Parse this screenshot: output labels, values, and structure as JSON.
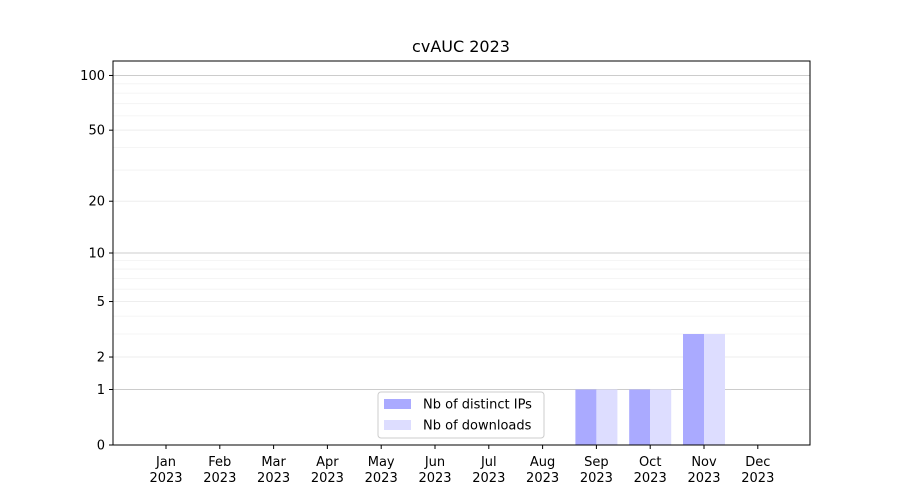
{
  "chart_data": {
    "type": "bar",
    "title": "cvAUC 2023",
    "xlabel": "",
    "ylabel": "",
    "scale": "symlog",
    "categories": [
      [
        "Jan",
        "2023"
      ],
      [
        "Feb",
        "2023"
      ],
      [
        "Mar",
        "2023"
      ],
      [
        "Apr",
        "2023"
      ],
      [
        "May",
        "2023"
      ],
      [
        "Jun",
        "2023"
      ],
      [
        "Jul",
        "2023"
      ],
      [
        "Aug",
        "2023"
      ],
      [
        "Sep",
        "2023"
      ],
      [
        "Oct",
        "2023"
      ],
      [
        "Nov",
        "2023"
      ],
      [
        "Dec",
        "2023"
      ]
    ],
    "series": [
      {
        "name": "Nb of distinct IPs",
        "color": "#aaaaff",
        "values": [
          0,
          0,
          0,
          0,
          0,
          0,
          0,
          0,
          1,
          1,
          3,
          0
        ]
      },
      {
        "name": "Nb of downloads",
        "color": "#ddddff",
        "values": [
          0,
          0,
          0,
          0,
          0,
          0,
          0,
          0,
          1,
          1,
          3,
          0
        ]
      }
    ],
    "yticks": [
      0,
      1,
      2,
      5,
      10,
      20,
      50,
      100
    ],
    "ylim": [
      0,
      120
    ],
    "grid": true,
    "legend_position": "bottom-center"
  }
}
